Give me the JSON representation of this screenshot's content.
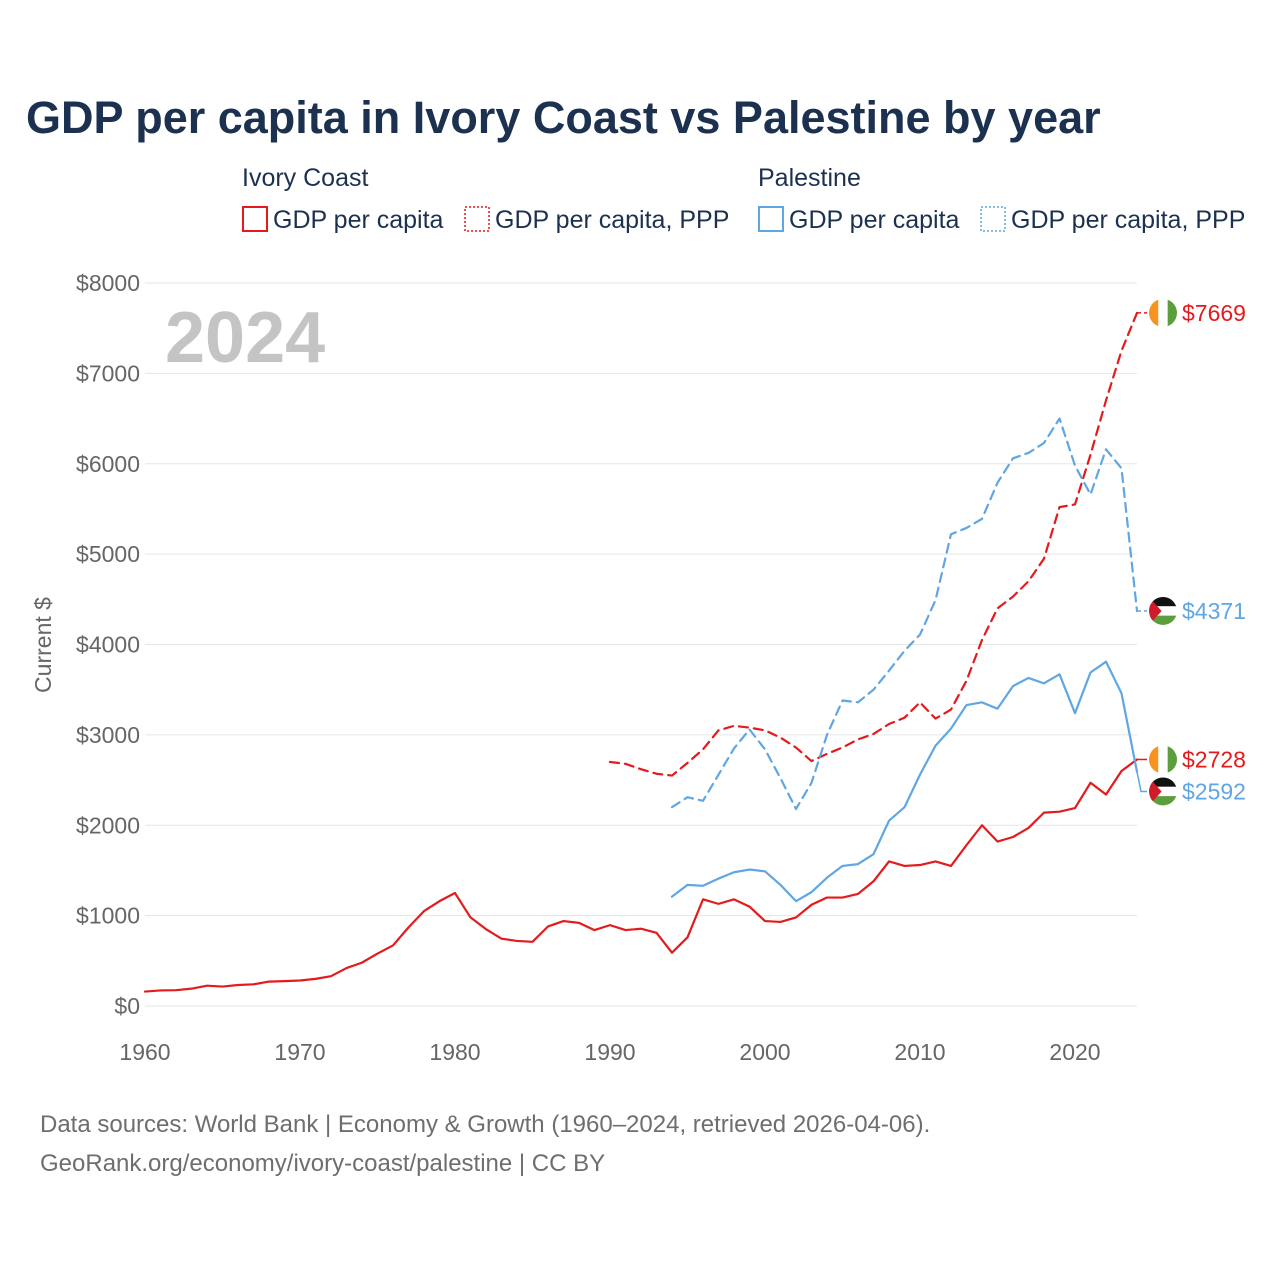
{
  "title": "GDP per capita in Ivory Coast vs Palestine by year",
  "year_label": "2024",
  "legend": {
    "groups": [
      {
        "name": "Ivory Coast",
        "items": [
          "GDP per capita",
          "GDP per capita, PPP"
        ]
      },
      {
        "name": "Palestine",
        "items": [
          "GDP per capita",
          "GDP per capita, PPP"
        ]
      }
    ]
  },
  "colors": {
    "ivory_coast": "#e41a1c",
    "palestine": "#5fa6e3",
    "title": "#1c3150",
    "tick": "#666666",
    "grid": "#e6e6e6"
  },
  "source": {
    "line1": "Data sources: World Bank | Economy & Growth (1960–2024, retrieved 2026-04-06).",
    "line2": "GeoRank.org/economy/ivory-coast/palestine | CC BY"
  },
  "chart_data": {
    "type": "line",
    "title": "GDP per capita in Ivory Coast vs Palestine by year",
    "xlabel": "",
    "ylabel": "Current $",
    "xlim": [
      1960,
      2024
    ],
    "ylim": [
      0,
      8000
    ],
    "x_ticks": [
      1960,
      1970,
      1980,
      1990,
      2000,
      2010,
      2020
    ],
    "y_ticks": [
      0,
      1000,
      2000,
      3000,
      4000,
      5000,
      6000,
      7000,
      8000
    ],
    "x_tick_labels": [
      "1960",
      "1970",
      "1980",
      "1990",
      "2000",
      "2010",
      "2020"
    ],
    "y_tick_labels": [
      "$0",
      "$1000",
      "$2000",
      "$3000",
      "$4000",
      "$5000",
      "$6000",
      "$7000",
      "$8000"
    ],
    "grid": true,
    "series": [
      {
        "name": "Ivory Coast GDP per capita",
        "country": "Ivory Coast",
        "style": "solid",
        "color": "#e41a1c",
        "end_label": "$2728",
        "start_year": 1960,
        "values": [
          160,
          172,
          175,
          192,
          225,
          215,
          232,
          240,
          270,
          275,
          282,
          300,
          330,
          420,
          480,
          580,
          670,
          870,
          1050,
          1160,
          1250,
          980,
          850,
          745,
          720,
          710,
          880,
          940,
          920,
          840,
          895,
          840,
          855,
          810,
          590,
          760,
          1180,
          1130,
          1180,
          1100,
          940,
          930,
          980,
          1120,
          1200,
          1200,
          1240,
          1380,
          1600,
          1550,
          1560,
          1600,
          1550,
          1780,
          2000,
          1820,
          1870,
          1970,
          2140,
          2150,
          2190,
          2470,
          2340,
          2600,
          2728
        ]
      },
      {
        "name": "Ivory Coast GDP per capita, PPP",
        "country": "Ivory Coast",
        "style": "dashed",
        "color": "#e41a1c",
        "end_label": "$7669",
        "start_year": 1990,
        "values": [
          2700,
          2680,
          2620,
          2570,
          2550,
          2690,
          2840,
          3050,
          3100,
          3080,
          3050,
          2970,
          2860,
          2710,
          2790,
          2860,
          2950,
          3010,
          3120,
          3190,
          3360,
          3180,
          3280,
          3600,
          4050,
          4400,
          4530,
          4700,
          4950,
          5520,
          5550,
          6100,
          6700,
          7250,
          7669
        ]
      },
      {
        "name": "Palestine GDP per capita",
        "country": "Palestine",
        "style": "solid",
        "color": "#5fa6e3",
        "end_label": "$2592",
        "start_year": 1994,
        "values": [
          1210,
          1340,
          1330,
          1410,
          1480,
          1510,
          1490,
          1340,
          1160,
          1260,
          1420,
          1550,
          1570,
          1680,
          2050,
          2200,
          2560,
          2880,
          3070,
          3330,
          3360,
          3290,
          3540,
          3630,
          3570,
          3670,
          3240,
          3690,
          3810,
          3460,
          2592
        ]
      },
      {
        "name": "Palestine GDP per capita, PPP",
        "country": "Palestine",
        "style": "dashed",
        "color": "#5fa6e3",
        "end_label": "$4371",
        "start_year": 1994,
        "values": [
          2200,
          2310,
          2270,
          2560,
          2850,
          3060,
          2840,
          2520,
          2180,
          2470,
          3000,
          3380,
          3360,
          3500,
          3710,
          3930,
          4110,
          4490,
          5220,
          5290,
          5390,
          5790,
          6060,
          6120,
          6230,
          6500,
          5980,
          5660,
          6160,
          5950,
          4371
        ]
      }
    ]
  }
}
